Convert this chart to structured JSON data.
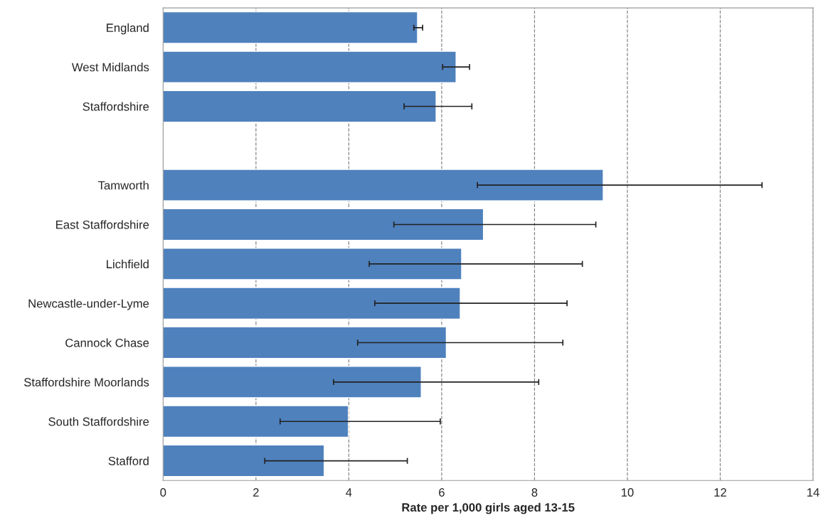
{
  "chart_data": {
    "type": "bar",
    "orientation": "horizontal",
    "xlabel": "Rate per 1,000 girls aged 13-15",
    "categories": [
      "England",
      "West Midlands",
      "Staffordshire",
      null,
      "Tamworth",
      "East Staffordshire",
      "Lichfield",
      "Newcastle-under-Lyme",
      "Cannock Chase",
      "Staffordshire Moorlands",
      "South Staffordshire",
      "Stafford"
    ],
    "values": [
      5.48,
      6.31,
      5.88,
      null,
      9.48,
      6.9,
      6.43,
      6.4,
      6.1,
      5.56,
      3.99,
      3.47
    ],
    "errors": [
      [
        5.4,
        5.59
      ],
      [
        6.02,
        6.6
      ],
      [
        5.19,
        6.65
      ],
      null,
      [
        6.77,
        12.9
      ],
      [
        4.97,
        9.32
      ],
      [
        4.44,
        9.03
      ],
      [
        4.56,
        8.7
      ],
      [
        4.19,
        8.61
      ],
      [
        3.67,
        8.09
      ],
      [
        2.52,
        5.97
      ],
      [
        2.19,
        5.26
      ]
    ],
    "color": "#4f81bd",
    "xlim": [
      0,
      14
    ],
    "xticks": [
      0,
      2,
      4,
      6,
      8,
      10,
      12,
      14
    ],
    "grid": "x",
    "line_style": "dashed"
  }
}
